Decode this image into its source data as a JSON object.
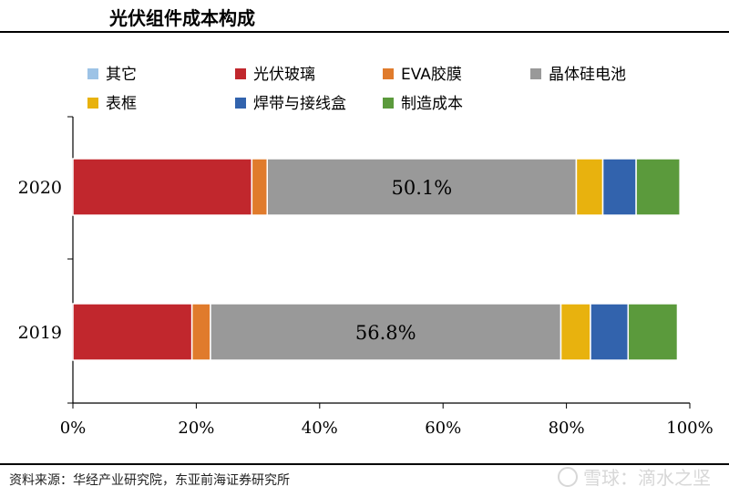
{
  "header": {
    "title": "光伏组件成本构成"
  },
  "footer": {
    "source": "资料来源：华经产业研究院，东亚前海证券研究所"
  },
  "watermark": {
    "brand": "雪球：滴水之坚",
    "icon": "snowball-logo-icon"
  },
  "chart_data": {
    "type": "bar",
    "orientation": "horizontal",
    "stacked": true,
    "categories": [
      "2020",
      "2019"
    ],
    "series": [
      {
        "name": "其它",
        "color": "#9dc3e6",
        "values": [
          0,
          0
        ]
      },
      {
        "name": "光伏玻璃",
        "color": "#c1272d",
        "values": [
          29,
          19.3
        ]
      },
      {
        "name": "EVA胶膜",
        "color": "#e07b2c",
        "values": [
          2.5,
          3
        ]
      },
      {
        "name": "晶体硅电池",
        "color": "#999999",
        "values": [
          50.1,
          56.8
        ]
      },
      {
        "name": "表框",
        "color": "#e8b20e",
        "values": [
          4.3,
          4.8
        ]
      },
      {
        "name": "焊带与接线盒",
        "color": "#3263ad",
        "values": [
          5.4,
          6.1
        ]
      },
      {
        "name": "制造成本",
        "color": "#5b9a3c",
        "values": [
          7.1,
          8
        ]
      }
    ],
    "data_labels": [
      {
        "category": "2020",
        "series": "晶体硅电池",
        "text": "50.1%"
      },
      {
        "category": "2019",
        "series": "晶体硅电池",
        "text": "56.8%"
      }
    ],
    "xticks": [
      "0%",
      "20%",
      "40%",
      "60%",
      "80%",
      "100%"
    ],
    "xlim": [
      0,
      100
    ],
    "legend": "top",
    "grid": false
  }
}
